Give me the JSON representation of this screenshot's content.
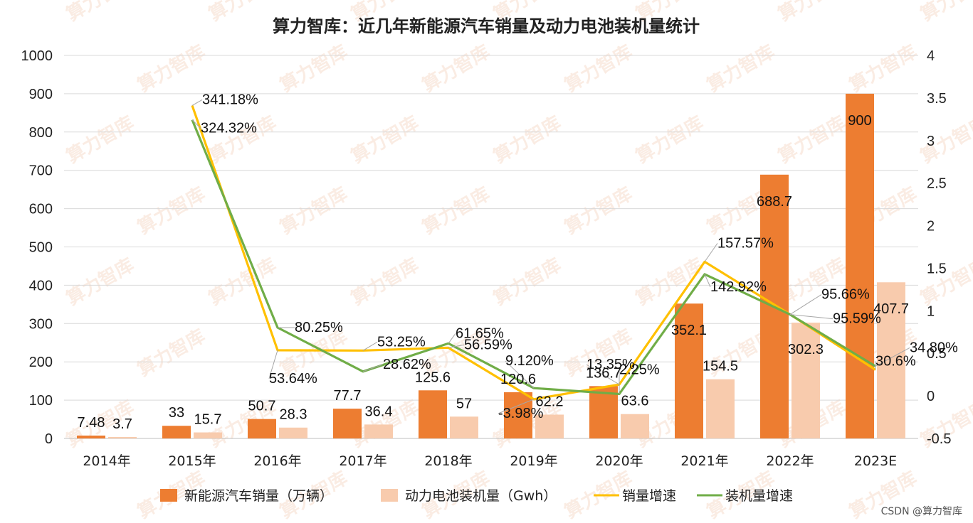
{
  "chart_data": {
    "type": "bar",
    "title": "算力智库：近几年新能源汽车销量及动力电池装机量统计",
    "categories": [
      "2014年",
      "2015年",
      "2016年",
      "2017年",
      "2018年",
      "2019年",
      "2020年",
      "2021年",
      "2022年",
      "2023E"
    ],
    "y_left": {
      "ylim": [
        0,
        1000
      ],
      "ticks": [
        "0",
        "100",
        "200",
        "300",
        "400",
        "500",
        "600",
        "700",
        "800",
        "900",
        "1000"
      ]
    },
    "y_right": {
      "ylim": [
        -0.5,
        4
      ],
      "ticks": [
        "-0.5",
        "0",
        "0.5",
        "1",
        "1.5",
        "2",
        "2.5",
        "3",
        "3.5",
        "4"
      ]
    },
    "bar_series": [
      {
        "name": "新能源汽车销量（万辆）",
        "color": "#ED7D31",
        "values": [
          7.48,
          33,
          50.7,
          77.7,
          125.6,
          120.6,
          136.7,
          352.1,
          688.7,
          900
        ],
        "labels": [
          "7.48",
          "33",
          "50.7",
          "77.7",
          "125.6",
          "120.6",
          "136.7",
          "352.1",
          "688.7",
          "900"
        ]
      },
      {
        "name": "动力电池装机量（Gwh）",
        "color": "#F8CBAD",
        "values": [
          3.7,
          15.7,
          28.3,
          36.4,
          57,
          62.2,
          63.6,
          154.5,
          302.3,
          407.7
        ],
        "labels": [
          "3.7",
          "15.7",
          "28.3",
          "36.4",
          "57",
          "62.2",
          "63.6",
          "154.5",
          "302.3",
          "407.7"
        ]
      }
    ],
    "line_series": [
      {
        "name": "销量增速",
        "color": "#FFC000",
        "x_start_index": 1,
        "values": [
          3.4118,
          0.5364,
          0.5325,
          0.5659,
          -0.0398,
          0.1335,
          1.5757,
          0.9566,
          0.306
        ],
        "labels": [
          "341.18%",
          "53.64%",
          "53.25%",
          "56.59%",
          "-3.98%",
          "13.35%",
          "157.57%",
          "95.66%",
          "30.6%"
        ]
      },
      {
        "name": "装机量增速",
        "color": "#70AD47",
        "x_start_index": 1,
        "values": [
          3.2432,
          0.8025,
          0.2862,
          0.6165,
          0.0912,
          0.0225,
          1.4292,
          0.9559,
          0.348
        ],
        "labels": [
          "324.32%",
          "80.25%",
          "28.62%",
          "61.65%",
          "9.120%",
          "2.25%",
          "142.92%",
          "95.59%",
          "34.80%"
        ]
      }
    ],
    "legend": "bottom",
    "grid": true
  },
  "watermark": "算力智库",
  "credit": "CSDN @算力智库"
}
